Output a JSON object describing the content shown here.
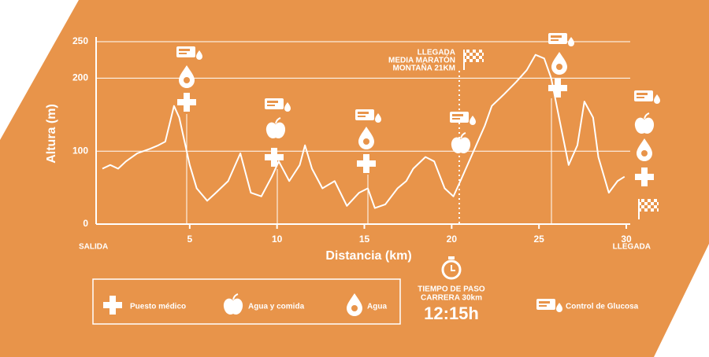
{
  "chart_data": {
    "type": "line",
    "y_label": "Altura (m)",
    "x_label": "Distancia (km)",
    "start_label": "SALIDA",
    "end_label": "LLEGADA",
    "annotation": [
      "LLEGADA",
      "MEDIA MARATÓN",
      "MONTAÑA 21KM"
    ],
    "x": [
      0,
      0.45,
      0.9,
      1.35,
      2.0,
      2.7,
      3.2,
      3.6,
      4.1,
      4.4,
      5.0,
      5.4,
      6.0,
      6.5,
      7.2,
      7.9,
      8.5,
      9.1,
      9.7,
      10.1,
      10.7,
      11.3,
      11.6,
      12.0,
      12.6,
      13.3,
      14.0,
      14.7,
      15.2,
      15.6,
      16.2,
      16.9,
      17.4,
      17.8,
      18.5,
      19.0,
      19.6,
      20.1,
      20.5,
      21.2,
      21.9,
      22.3,
      23.0,
      23.7,
      24.3,
      24.8,
      25.3,
      25.7,
      26.2,
      26.7,
      27.2,
      27.6,
      28.1,
      28.4,
      29.0,
      29.5,
      29.9
    ],
    "values": [
      76,
      81,
      76,
      86,
      97,
      103,
      108,
      113,
      162,
      146,
      81,
      49,
      32,
      43,
      59,
      97,
      43,
      38,
      65,
      86,
      59,
      81,
      108,
      76,
      49,
      59,
      25,
      43,
      49,
      22,
      27,
      49,
      59,
      76,
      92,
      86,
      49,
      38,
      59,
      97,
      135,
      162,
      178,
      195,
      211,
      232,
      227,
      200,
      140,
      81,
      108,
      168,
      146,
      92,
      43,
      59,
      65
    ],
    "color": "#ffffff",
    "xlim": [
      0,
      30
    ],
    "ylim": [
      0,
      250
    ],
    "xticks": [
      5,
      10,
      15,
      20,
      25,
      30
    ],
    "yticks": [
      0,
      100,
      200,
      250
    ],
    "grid": true
  },
  "legend": {
    "items": [
      "Puesto médico",
      "Agua y comida",
      "Agua",
      "Control de Glucosa"
    ]
  },
  "timing": {
    "lines": [
      "TIEMPO DE PASO",
      "CARRERA 30km"
    ],
    "time": "12:15h"
  }
}
